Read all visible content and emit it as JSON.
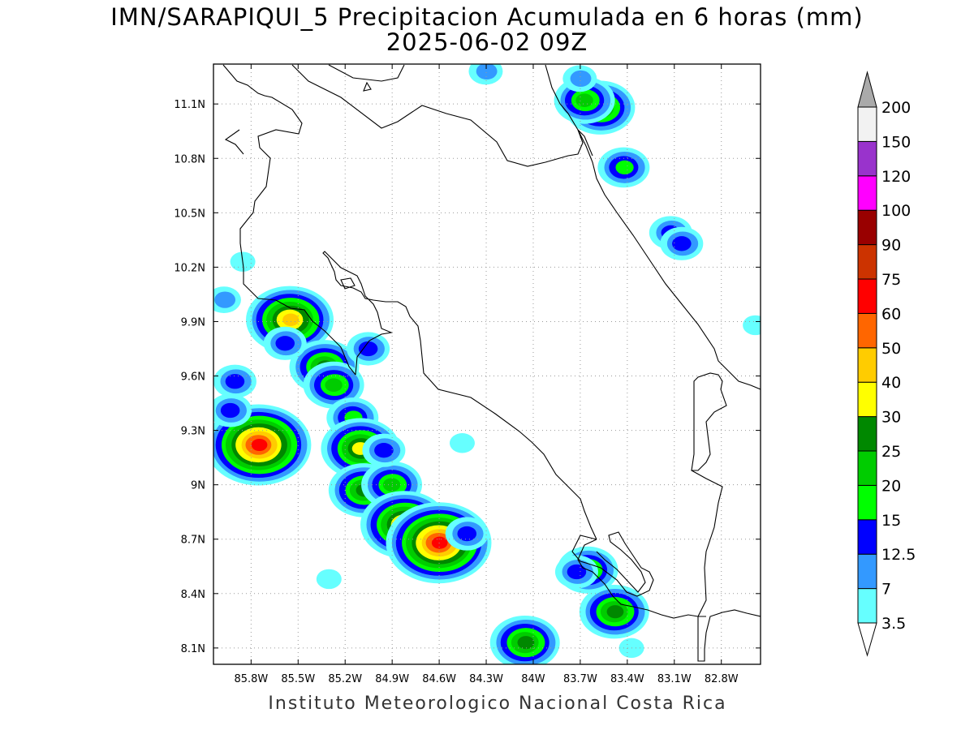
{
  "title_line1": "IMN/SARAPIQUI_5 Precipitacion Acumulada en 6 horas (mm)",
  "title_line2": "2025-06-02 09Z",
  "footer": "Instituto Meteorologico Nacional Costa Rica",
  "map": {
    "lon_ticks": [
      {
        "lon": -85.8,
        "label": "85.8W"
      },
      {
        "lon": -85.5,
        "label": "85.5W"
      },
      {
        "lon": -85.2,
        "label": "85.2W"
      },
      {
        "lon": -84.9,
        "label": "84.9W"
      },
      {
        "lon": -84.6,
        "label": "84.6W"
      },
      {
        "lon": -84.3,
        "label": "84.3W"
      },
      {
        "lon": -84.0,
        "label": "84W"
      },
      {
        "lon": -83.7,
        "label": "83.7W"
      },
      {
        "lon": -83.4,
        "label": "83.4W"
      },
      {
        "lon": -83.1,
        "label": "83.1W"
      },
      {
        "lon": -82.8,
        "label": "82.8W"
      }
    ],
    "lat_ticks": [
      {
        "lat": 8.1,
        "label": "8.1N"
      },
      {
        "lat": 8.4,
        "label": "8.4N"
      },
      {
        "lat": 8.7,
        "label": "8.7N"
      },
      {
        "lat": 9.0,
        "label": "9N"
      },
      {
        "lat": 9.3,
        "label": "9.3N"
      },
      {
        "lat": 9.6,
        "label": "9.6N"
      },
      {
        "lat": 9.9,
        "label": "9.9N"
      },
      {
        "lat": 10.2,
        "label": "10.2N"
      },
      {
        "lat": 10.5,
        "label": "10.5N"
      },
      {
        "lat": 10.8,
        "label": "10.8N"
      },
      {
        "lat": 11.1,
        "label": "11.1N"
      }
    ],
    "grid": true
  },
  "colorbar": {
    "levels": [
      {
        "label": "3.5",
        "color": "#66ffff"
      },
      {
        "label": "7",
        "color": "#3399ff"
      },
      {
        "label": "12.5",
        "color": "#0000ff"
      },
      {
        "label": "15",
        "color": "#00ff00"
      },
      {
        "label": "20",
        "color": "#00cc00"
      },
      {
        "label": "25",
        "color": "#008800"
      },
      {
        "label": "30",
        "color": "#ffff00"
      },
      {
        "label": "40",
        "color": "#ffcc00"
      },
      {
        "label": "50",
        "color": "#ff6600"
      },
      {
        "label": "60",
        "color": "#ff0000"
      },
      {
        "label": "75",
        "color": "#cc3300"
      },
      {
        "label": "90",
        "color": "#990000"
      },
      {
        "label": "100",
        "color": "#ff00ff"
      },
      {
        "label": "120",
        "color": "#9933cc"
      },
      {
        "label": "150",
        "color": "#f2f2f2"
      },
      {
        "label": "200",
        "color": "#aaaaaa"
      }
    ]
  },
  "precip_cells": [
    {
      "lon": -85.75,
      "lat": 9.22,
      "peak": 60
    },
    {
      "lon": -85.55,
      "lat": 9.91,
      "peak": 40
    },
    {
      "lon": -85.33,
      "lat": 9.65,
      "peak": 25
    },
    {
      "lon": -85.27,
      "lat": 9.55,
      "peak": 20
    },
    {
      "lon": -85.15,
      "lat": 9.37,
      "peak": 15
    },
    {
      "lon": -85.1,
      "lat": 9.2,
      "peak": 30
    },
    {
      "lon": -85.08,
      "lat": 8.97,
      "peak": 25
    },
    {
      "lon": -84.9,
      "lat": 9.0,
      "peak": 20
    },
    {
      "lon": -84.82,
      "lat": 8.78,
      "peak": 40
    },
    {
      "lon": -84.6,
      "lat": 8.68,
      "peak": 60
    },
    {
      "lon": -84.42,
      "lat": 8.73,
      "peak": 12.5
    },
    {
      "lon": -84.05,
      "lat": 8.13,
      "peak": 25
    },
    {
      "lon": -83.48,
      "lat": 8.3,
      "peak": 25
    },
    {
      "lon": -83.65,
      "lat": 8.53,
      "peak": 20
    },
    {
      "lon": -83.57,
      "lat": 11.08,
      "peak": 25
    },
    {
      "lon": -83.67,
      "lat": 11.12,
      "peak": 20
    },
    {
      "lon": -83.42,
      "lat": 10.75,
      "peak": 15
    },
    {
      "lon": -83.12,
      "lat": 10.39,
      "peak": 12.5
    },
    {
      "lon": -83.05,
      "lat": 10.33,
      "peak": 12.5
    },
    {
      "lon": -85.58,
      "lat": 9.78,
      "peak": 12.5
    },
    {
      "lon": -85.05,
      "lat": 9.75,
      "peak": 12.5
    },
    {
      "lon": -85.9,
      "lat": 9.57,
      "peak": 12.5
    },
    {
      "lon": -85.93,
      "lat": 9.41,
      "peak": 12.5
    },
    {
      "lon": -84.95,
      "lat": 9.19,
      "peak": 12.5
    },
    {
      "lon": -83.72,
      "lat": 8.52,
      "peak": 12.5
    },
    {
      "lon": -83.7,
      "lat": 11.24,
      "peak": 7
    },
    {
      "lon": -84.3,
      "lat": 11.28,
      "peak": 7
    },
    {
      "lon": -82.58,
      "lat": 9.88,
      "peak": 3.5
    },
    {
      "lon": -84.45,
      "lat": 9.23,
      "peak": 3.5
    },
    {
      "lon": -85.3,
      "lat": 8.48,
      "peak": 3.5
    },
    {
      "lon": -83.37,
      "lat": 8.1,
      "peak": 3.5
    },
    {
      "lon": -85.85,
      "lat": 10.23,
      "peak": 3.5
    },
    {
      "lon": -85.97,
      "lat": 10.02,
      "peak": 7
    }
  ]
}
